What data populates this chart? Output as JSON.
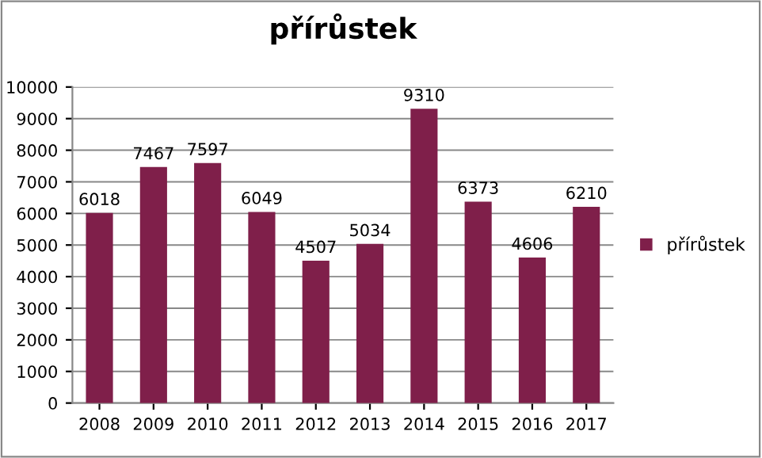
{
  "chart_data": {
    "type": "bar",
    "title": "přírůstek",
    "categories": [
      "2008",
      "2009",
      "2010",
      "2011",
      "2012",
      "2013",
      "2014",
      "2015",
      "2016",
      "2017"
    ],
    "series": [
      {
        "name": "přírůstek",
        "color": "#7f1f4a",
        "values": [
          6018,
          7467,
          7597,
          6049,
          4507,
          5034,
          9310,
          6373,
          4606,
          6210
        ]
      }
    ],
    "ylim": [
      0,
      10000
    ],
    "yticks": [
      0,
      1000,
      2000,
      3000,
      4000,
      5000,
      6000,
      7000,
      8000,
      9000,
      10000
    ],
    "grid": "y",
    "legend": "right",
    "data_labels": true
  }
}
